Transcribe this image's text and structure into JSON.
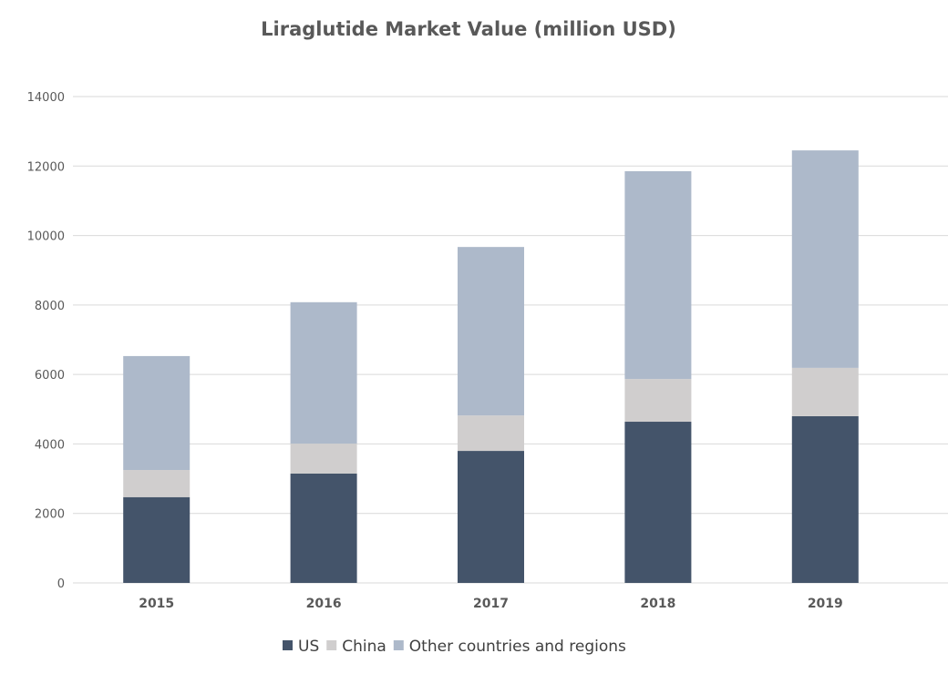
{
  "chart_data": {
    "type": "bar",
    "stacked": true,
    "title": "Liraglutide Market Value (million USD)",
    "xlabel": "",
    "ylabel": "",
    "ylim": [
      0,
      14000
    ],
    "yticks": [
      0,
      2000,
      4000,
      6000,
      8000,
      10000,
      12000,
      14000
    ],
    "grid": true,
    "legend_position": "bottom",
    "categories": [
      "2015",
      "2016",
      "2017",
      "2018",
      "2019"
    ],
    "series": [
      {
        "name": "US",
        "color": "#44546a",
        "values": [
          2470,
          3150,
          3800,
          4640,
          4800
        ]
      },
      {
        "name": "China",
        "color": "#d0cece",
        "values": [
          780,
          860,
          1020,
          1230,
          1390
        ]
      },
      {
        "name": "Other countries and regions",
        "color": "#adb9ca",
        "values": [
          3280,
          4070,
          4850,
          5980,
          6260
        ]
      }
    ]
  }
}
